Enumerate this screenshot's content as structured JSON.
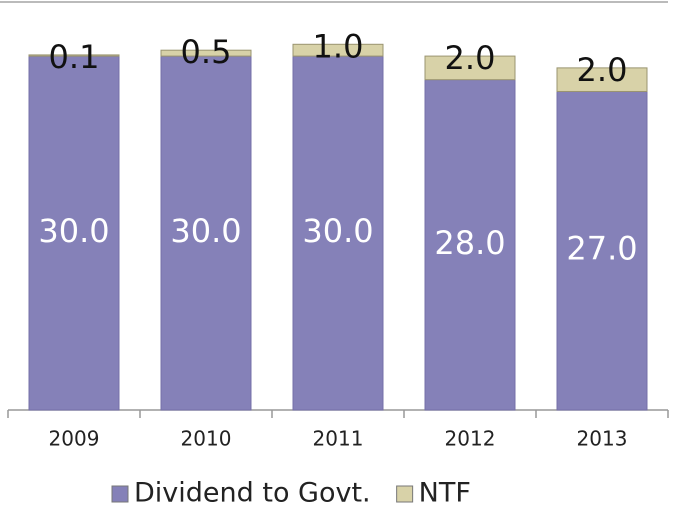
{
  "chart_data": {
    "type": "stacked_bar",
    "categories": [
      "2009",
      "2010",
      "2011",
      "2012",
      "2013"
    ],
    "series": [
      {
        "name": "Dividend to Govt.",
        "color": "#8581b8",
        "values": [
          30,
          30,
          30,
          28,
          27
        ],
        "value_labels": [
          "30.0",
          "30.0",
          "30.0",
          "28.0",
          "27.0"
        ]
      },
      {
        "name": "NTF",
        "color": "#d8d2a8",
        "values": [
          0.1,
          0.5,
          1,
          2,
          2
        ],
        "value_labels": [
          "0.1",
          "0.5",
          "1.0",
          "2.0",
          "2.0"
        ]
      }
    ],
    "ylim": [
      0,
      34.5
    ]
  }
}
